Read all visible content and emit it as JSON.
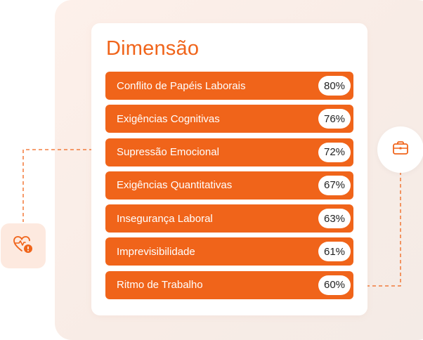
{
  "card": {
    "title": "Dimensão",
    "rows": [
      {
        "label": "Conflito de Papéis Laborais",
        "value": "80%"
      },
      {
        "label": "Exigências Cognitivas",
        "value": "76%"
      },
      {
        "label": "Supressão Emocional",
        "value": "72%"
      },
      {
        "label": "Exigências Quantitativas",
        "value": "67%"
      },
      {
        "label": "Insegurança Laboral",
        "value": "63%"
      },
      {
        "label": "Imprevisibilidade",
        "value": "61%"
      },
      {
        "label": "Ritmo de Trabalho",
        "value": "60%"
      }
    ]
  },
  "icons": {
    "left_badge": "heart-pulse-alert-icon",
    "right_badge": "briefcase-icon"
  },
  "colors": {
    "accent": "#f0641a",
    "panel_bg": "#f8ece6",
    "badge_bg": "#fde9df"
  }
}
